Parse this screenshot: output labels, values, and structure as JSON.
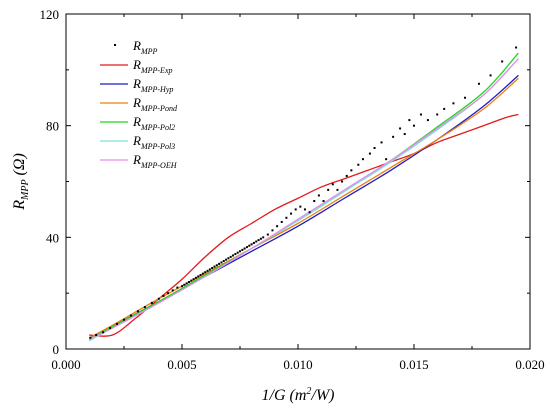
{
  "chart_data": {
    "type": "scatter",
    "xlabel": {
      "main": "1/G (m",
      "sup": "2",
      "end": "/W)"
    },
    "ylabel": {
      "main": "R",
      "sub": "MPP",
      "end": " (Ω)"
    },
    "xlim": [
      0.0,
      0.02
    ],
    "ylim": [
      0,
      120
    ],
    "x_ticks": [
      "0.000",
      "0.005",
      "0.010",
      "0.015",
      "0.020"
    ],
    "x_tick_values": [
      0.0,
      0.005,
      0.01,
      0.015,
      0.02
    ],
    "y_ticks": [
      "0",
      "40",
      "80",
      "120"
    ],
    "y_tick_values": [
      0,
      40,
      80,
      120
    ],
    "legend_placement": "top-left",
    "grid": false,
    "scatter": {
      "name_main": "R",
      "name_sub": "MPP",
      "color": "#000000",
      "x": [
        0.00105,
        0.0013,
        0.0016,
        0.0019,
        0.0022,
        0.0025,
        0.0028,
        0.0031,
        0.0034,
        0.0037,
        0.004,
        0.0042,
        0.0044,
        0.0046,
        0.0048,
        0.005,
        0.0051,
        0.0052,
        0.0053,
        0.0054,
        0.0055,
        0.0056,
        0.0057,
        0.0058,
        0.0059,
        0.006,
        0.0061,
        0.0062,
        0.0063,
        0.0064,
        0.0065,
        0.0066,
        0.0067,
        0.0068,
        0.0069,
        0.007,
        0.0071,
        0.0072,
        0.0073,
        0.0074,
        0.0075,
        0.0076,
        0.0077,
        0.0078,
        0.0079,
        0.008,
        0.0081,
        0.0082,
        0.0083,
        0.0084,
        0.0085,
        0.0087,
        0.0089,
        0.0091,
        0.0093,
        0.0095,
        0.0097,
        0.0099,
        0.0101,
        0.0103,
        0.0105,
        0.0107,
        0.0109,
        0.0111,
        0.0113,
        0.0115,
        0.0117,
        0.0119,
        0.0121,
        0.0123,
        0.0126,
        0.0128,
        0.0131,
        0.0133,
        0.0136,
        0.0138,
        0.0141,
        0.0144,
        0.0146,
        0.0148,
        0.015,
        0.0153,
        0.0156,
        0.016,
        0.0163,
        0.0167,
        0.0172,
        0.0178,
        0.0183,
        0.0188,
        0.0194
      ],
      "y": [
        4.0,
        5.0,
        6.0,
        7.5,
        9.0,
        10.5,
        12.0,
        13.5,
        15.0,
        16.5,
        18.0,
        19.0,
        20.0,
        21.0,
        22.0,
        22.5,
        23.0,
        23.5,
        24.0,
        24.5,
        25.0,
        25.5,
        26.0,
        26.5,
        27.0,
        27.5,
        28.0,
        28.5,
        29.0,
        29.5,
        30.0,
        30.5,
        31.0,
        31.5,
        32.0,
        32.5,
        33.0,
        33.5,
        34.0,
        34.5,
        35.0,
        35.5,
        36.0,
        36.5,
        37.0,
        37.5,
        38.0,
        38.5,
        39.0,
        39.5,
        40.0,
        41.0,
        42.5,
        44.0,
        45.5,
        47.0,
        48.5,
        50.0,
        51.0,
        50.0,
        49.0,
        53.0,
        55.0,
        53.0,
        57.0,
        59.0,
        57.0,
        60.0,
        62.0,
        64.0,
        66.0,
        68.0,
        70.0,
        72.0,
        74.0,
        68.0,
        76.0,
        79.0,
        77.0,
        82.0,
        80.0,
        84.0,
        82.0,
        84.0,
        86.0,
        88.0,
        90.0,
        95.0,
        98.0,
        103.0,
        108.0
      ]
    },
    "series": [
      {
        "name_main": "R",
        "name_sub": "MPP-Exp",
        "color": "#e41a1c",
        "x": [
          0.001,
          0.002,
          0.003,
          0.004,
          0.005,
          0.006,
          0.007,
          0.008,
          0.009,
          0.01,
          0.011,
          0.012,
          0.013,
          0.014,
          0.015,
          0.016,
          0.017,
          0.018,
          0.019,
          0.0195
        ],
        "y": [
          5.0,
          5.0,
          11.0,
          18.0,
          25.0,
          33.0,
          40.0,
          45.0,
          50.0,
          54.0,
          58.0,
          61.0,
          64.0,
          67.0,
          70.0,
          74.0,
          77.0,
          80.0,
          83.0,
          84.0
        ]
      },
      {
        "name_main": "R",
        "name_sub": "MPP-Hyp",
        "color": "#1c1cc8",
        "x": [
          0.001,
          0.002,
          0.004,
          0.006,
          0.008,
          0.01,
          0.012,
          0.014,
          0.016,
          0.018,
          0.0195
        ],
        "y": [
          3.0,
          8.0,
          17.0,
          26.0,
          35.0,
          44.0,
          54.0,
          64.0,
          75.0,
          87.0,
          98.0
        ]
      },
      {
        "name_main": "R",
        "name_sub": "MPP-Pond",
        "color": "#f07d12",
        "x": [
          0.001,
          0.002,
          0.004,
          0.006,
          0.008,
          0.01,
          0.012,
          0.014,
          0.016,
          0.018,
          0.0195
        ],
        "y": [
          4.0,
          8.5,
          18.0,
          27.0,
          36.0,
          45.0,
          55.0,
          65.0,
          75.0,
          86.0,
          97.0
        ]
      },
      {
        "name_main": "R",
        "name_sub": "MPP-Pol2",
        "color": "#1fd41f",
        "x": [
          0.001,
          0.002,
          0.004,
          0.006,
          0.008,
          0.01,
          0.012,
          0.014,
          0.016,
          0.018,
          0.0195
        ],
        "y": [
          3.5,
          8.0,
          17.0,
          26.5,
          36.0,
          46.0,
          56.5,
          67.5,
          79.5,
          92.0,
          106.0
        ]
      },
      {
        "name_main": "R",
        "name_sub": "MPP-Pol3",
        "color": "#7be0e0",
        "x": [
          0.001,
          0.002,
          0.004,
          0.006,
          0.008,
          0.01,
          0.012,
          0.014,
          0.016,
          0.018,
          0.0195
        ],
        "y": [
          3.0,
          7.5,
          16.5,
          26.0,
          36.0,
          46.0,
          56.5,
          67.0,
          78.5,
          91.0,
          104.0
        ]
      },
      {
        "name_main": "R",
        "name_sub": "MPP-OEH",
        "color": "#e68ee6",
        "x": [
          0.001,
          0.002,
          0.004,
          0.006,
          0.008,
          0.01,
          0.012,
          0.014,
          0.016,
          0.018,
          0.0195
        ],
        "y": [
          3.5,
          7.5,
          16.5,
          26.0,
          36.0,
          46.5,
          57.0,
          67.5,
          79.0,
          91.0,
          104.0
        ]
      }
    ]
  }
}
